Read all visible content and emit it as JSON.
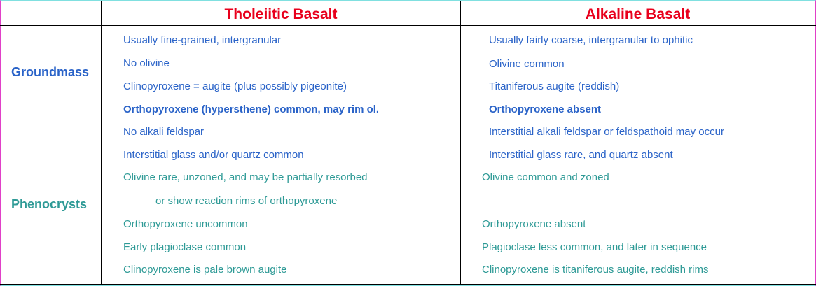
{
  "headers": {
    "col1": "Tholeiitic Basalt",
    "col2": "Alkaline Basalt"
  },
  "groundmass": {
    "label": "Groundmass",
    "tholeiitic": [
      "Usually fine-grained, intergranular",
      "No olivine",
      "Clinopyroxene = augite (plus possibly pigeonite)",
      "Orthopyroxene (hypersthene) common, may rim ol.",
      "No alkali feldspar",
      "Interstitial glass and/or quartz common"
    ],
    "alkaline": [
      "Usually fairly coarse, intergranular to ophitic",
      "Olivine common",
      "Titaniferous augite (reddish)",
      "Orthopyroxene absent",
      "Interstitial alkali feldspar or feldspathoid may occur",
      "Interstitial glass rare, and quartz absent"
    ]
  },
  "phenocrysts": {
    "label": "Phenocrysts",
    "tholeiitic": [
      "Olivine rare, unzoned, and may be partially resorbed",
      "or show reaction rims of orthopyroxene",
      "Orthopyroxene uncommon",
      "Early plagioclase common",
      "Clinopyroxene is pale brown augite"
    ],
    "alkaline": [
      "Olivine common and zoned",
      "Orthopyroxene absent",
      "Plagioclase less common, and later in sequence",
      "Clinopyroxene is titaniferous augite, reddish rims"
    ]
  },
  "colors": {
    "header": "#e8001c",
    "groundmass": "#2a63c8",
    "phenocrysts": "#2e9a96",
    "frame_side": "#e040c8",
    "frame_top": "#80e0e0"
  }
}
